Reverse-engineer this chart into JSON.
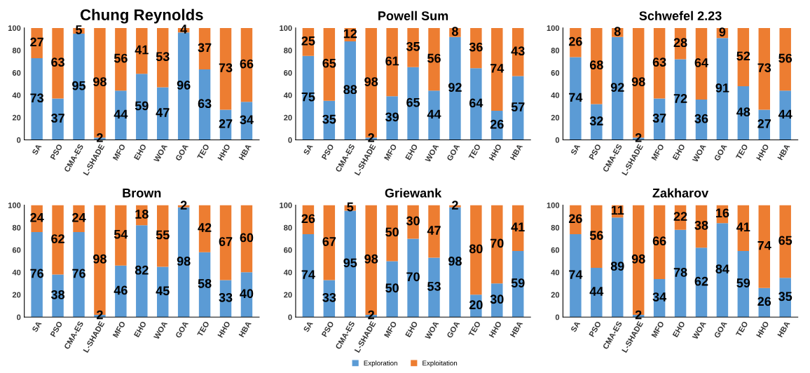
{
  "chart_data": [
    {
      "type": "bar",
      "title": "Chung Reynolds",
      "stacked": true,
      "data_labels": true,
      "ylim": [
        0,
        100
      ],
      "yticks": [
        0,
        20,
        40,
        60,
        80,
        100
      ],
      "grid": false,
      "legend": "bottom",
      "categories": [
        "SA",
        "PSO",
        "CMA-ES",
        "L-SHADE",
        "MFO",
        "EHO",
        "WOA",
        "GOA",
        "TEO",
        "HHO",
        "HBA"
      ],
      "series": [
        {
          "name": "Exploration",
          "color": "#5b9bd5",
          "values": [
            73,
            37,
            95,
            2,
            44,
            59,
            47,
            96,
            63,
            27,
            34
          ]
        },
        {
          "name": "Exploitation",
          "color": "#ed7d31",
          "values": [
            27,
            63,
            5,
            98,
            56,
            41,
            53,
            4,
            37,
            73,
            66
          ]
        }
      ]
    },
    {
      "type": "bar",
      "title": "Powell Sum",
      "stacked": true,
      "data_labels": true,
      "ylim": [
        0,
        100
      ],
      "yticks": [
        0,
        20,
        40,
        60,
        80,
        100
      ],
      "grid": false,
      "categories": [
        "SA",
        "PSO",
        "CMA-ES",
        "L-SHADE",
        "MFO",
        "EHO",
        "WOA",
        "GOA",
        "TEO",
        "HHO",
        "HBA"
      ],
      "series": [
        {
          "color": "#5b9bd5",
          "values": [
            75,
            35,
            88,
            2,
            39,
            65,
            44,
            92,
            64,
            26,
            57
          ]
        },
        {
          "color": "#ed7d31",
          "values": [
            25,
            65,
            12,
            98,
            61,
            35,
            56,
            8,
            36,
            74,
            43
          ]
        }
      ]
    },
    {
      "type": "bar",
      "title": "Schwefel 2.23",
      "stacked": true,
      "data_labels": true,
      "ylim": [
        0,
        100
      ],
      "yticks": [
        0,
        20,
        40,
        60,
        80,
        100
      ],
      "grid": false,
      "categories": [
        "SA",
        "PSO",
        "CMA-ES",
        "L-SHADE",
        "MFO",
        "EHO",
        "WOA",
        "GOA",
        "TEO",
        "HHO",
        "HBA"
      ],
      "series": [
        {
          "color": "#5b9bd5",
          "values": [
            74,
            32,
            92,
            2,
            37,
            72,
            36,
            91,
            48,
            27,
            44
          ]
        },
        {
          "color": "#ed7d31",
          "values": [
            26,
            68,
            8,
            98,
            63,
            28,
            64,
            9,
            52,
            73,
            56
          ]
        }
      ]
    },
    {
      "type": "bar",
      "title": "Brown",
      "stacked": true,
      "data_labels": true,
      "ylim": [
        0,
        100
      ],
      "yticks": [
        0,
        20,
        40,
        60,
        80,
        100
      ],
      "grid": false,
      "categories": [
        "SA",
        "PSO",
        "CMA-ES",
        "L-SHADE",
        "MFO",
        "EHO",
        "WOA",
        "GOA",
        "TEO",
        "HHO",
        "HBA"
      ],
      "series": [
        {
          "color": "#5b9bd5",
          "values": [
            76,
            38,
            76,
            2,
            46,
            82,
            45,
            98,
            58,
            33,
            40
          ]
        },
        {
          "color": "#ed7d31",
          "values": [
            24,
            62,
            24,
            98,
            54,
            18,
            55,
            2,
            42,
            67,
            60
          ]
        }
      ]
    },
    {
      "type": "bar",
      "title": "Griewank",
      "stacked": true,
      "data_labels": true,
      "ylim": [
        0,
        100
      ],
      "yticks": [
        0,
        20,
        40,
        60,
        80,
        100
      ],
      "grid": false,
      "categories": [
        "SA",
        "PSO",
        "CMA-ES",
        "L-SHADE",
        "MFO",
        "EHO",
        "WOA",
        "GOA",
        "TEO",
        "HHO",
        "HBA"
      ],
      "series": [
        {
          "color": "#5b9bd5",
          "values": [
            74,
            33,
            95,
            2,
            50,
            70,
            53,
            98,
            20,
            30,
            59
          ]
        },
        {
          "color": "#ed7d31",
          "values": [
            26,
            67,
            5,
            98,
            50,
            30,
            47,
            2,
            80,
            70,
            41
          ]
        }
      ]
    },
    {
      "type": "bar",
      "title": "Zakharov",
      "stacked": true,
      "data_labels": true,
      "ylim": [
        0,
        100
      ],
      "yticks": [
        0,
        20,
        40,
        60,
        80,
        100
      ],
      "grid": false,
      "categories": [
        "SA",
        "PSO",
        "CMA-ES",
        "L-SHADE",
        "MFO",
        "EHO",
        "WOA",
        "GOA",
        "TEO",
        "HHO",
        "HBA"
      ],
      "series": [
        {
          "color": "#5b9bd5",
          "values": [
            74,
            44,
            89,
            2,
            34,
            78,
            62,
            84,
            59,
            26,
            35
          ]
        },
        {
          "color": "#ed7d31",
          "values": [
            26,
            56,
            11,
            98,
            66,
            22,
            38,
            16,
            41,
            74,
            65
          ]
        }
      ]
    }
  ]
}
